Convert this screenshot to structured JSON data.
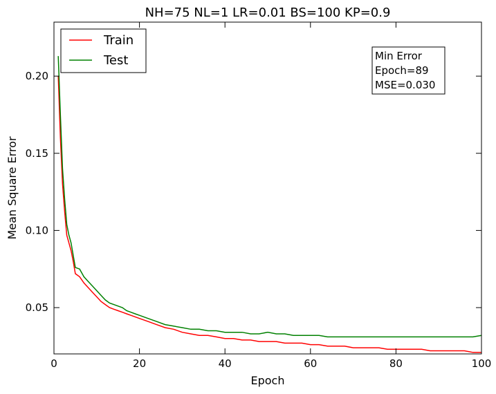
{
  "chart_data": {
    "type": "line",
    "title": "NH=75 NL=1 LR=0.01 BS=100 KP=0.9",
    "xlabel": "Epoch",
    "ylabel": "Mean Square Error",
    "xlim": [
      0,
      100
    ],
    "ylim": [
      0.02,
      0.235
    ],
    "xticks": [
      0,
      20,
      40,
      60,
      80,
      100
    ],
    "yticks": [
      0.05,
      0.1,
      0.15,
      0.2
    ],
    "xtick_labels": [
      "0",
      "20",
      "40",
      "60",
      "80",
      "100"
    ],
    "ytick_labels": [
      "0.05",
      "0.10",
      "0.15",
      "0.20"
    ],
    "grid": false,
    "legend": "top-left",
    "series": [
      {
        "name": "Train",
        "color": "#ff0000",
        "x": [
          1,
          1.5,
          2,
          2.5,
          3,
          3.5,
          4,
          4.5,
          5,
          6,
          7,
          8,
          9,
          10,
          11,
          12,
          13,
          14,
          15,
          16,
          17,
          18,
          19,
          20,
          22,
          24,
          26,
          28,
          30,
          32,
          34,
          36,
          38,
          40,
          42,
          44,
          46,
          48,
          50,
          52,
          54,
          56,
          58,
          60,
          62,
          64,
          66,
          68,
          70,
          72,
          74,
          76,
          78,
          80,
          82,
          84,
          86,
          88,
          90,
          92,
          94,
          96,
          98,
          100
        ],
        "y": [
          0.2,
          0.16,
          0.13,
          0.112,
          0.097,
          0.092,
          0.087,
          0.08,
          0.072,
          0.07,
          0.066,
          0.063,
          0.06,
          0.057,
          0.054,
          0.052,
          0.05,
          0.049,
          0.048,
          0.047,
          0.046,
          0.045,
          0.044,
          0.043,
          0.041,
          0.039,
          0.037,
          0.036,
          0.034,
          0.033,
          0.032,
          0.032,
          0.031,
          0.03,
          0.03,
          0.029,
          0.029,
          0.028,
          0.028,
          0.028,
          0.027,
          0.027,
          0.027,
          0.026,
          0.026,
          0.025,
          0.025,
          0.025,
          0.024,
          0.024,
          0.024,
          0.024,
          0.023,
          0.023,
          0.023,
          0.023,
          0.023,
          0.022,
          0.022,
          0.022,
          0.022,
          0.022,
          0.021,
          0.021
        ]
      },
      {
        "name": "Test",
        "color": "#008000",
        "x": [
          1,
          1.5,
          2,
          2.5,
          3,
          3.5,
          4,
          4.5,
          5,
          6,
          7,
          8,
          9,
          10,
          11,
          12,
          13,
          14,
          15,
          16,
          17,
          18,
          19,
          20,
          22,
          24,
          26,
          28,
          30,
          32,
          34,
          36,
          38,
          40,
          42,
          44,
          46,
          48,
          50,
          52,
          54,
          56,
          58,
          60,
          62,
          64,
          66,
          68,
          70,
          72,
          74,
          76,
          78,
          80,
          82,
          84,
          86,
          88,
          90,
          92,
          94,
          96,
          98,
          100
        ],
        "y": [
          0.213,
          0.175,
          0.14,
          0.12,
          0.104,
          0.097,
          0.092,
          0.084,
          0.076,
          0.075,
          0.07,
          0.067,
          0.064,
          0.061,
          0.058,
          0.055,
          0.053,
          0.052,
          0.051,
          0.05,
          0.048,
          0.047,
          0.046,
          0.045,
          0.043,
          0.041,
          0.039,
          0.038,
          0.037,
          0.036,
          0.036,
          0.035,
          0.035,
          0.034,
          0.034,
          0.034,
          0.033,
          0.033,
          0.034,
          0.033,
          0.033,
          0.032,
          0.032,
          0.032,
          0.032,
          0.031,
          0.031,
          0.031,
          0.031,
          0.031,
          0.031,
          0.031,
          0.031,
          0.031,
          0.031,
          0.031,
          0.031,
          0.031,
          0.031,
          0.031,
          0.031,
          0.031,
          0.031,
          0.032
        ]
      }
    ],
    "annotation": {
      "lines": [
        "Min Error",
        "Epoch=89",
        "MSE=0.030"
      ],
      "placement": "top-right"
    }
  }
}
